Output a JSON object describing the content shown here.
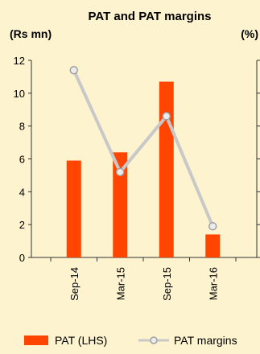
{
  "chart_data": {
    "type": "bar",
    "title": "PAT and PAT margins",
    "ylabel_left": "(Rs mn)",
    "ylabel_right": "(%)",
    "categories": [
      "Sep-14",
      "Mar-15",
      "Sep-15",
      "Mar-16"
    ],
    "ylim": [
      0,
      12
    ],
    "yticks": [
      0,
      2,
      4,
      6,
      8,
      10,
      12
    ],
    "grid": false,
    "legend_position": "bottom",
    "series": [
      {
        "name": "PAT (LHS)",
        "type": "bar",
        "axis": "left",
        "color": "#ff4500",
        "values": [
          5.9,
          6.4,
          10.7,
          1.4
        ]
      },
      {
        "name": "PAT margins",
        "type": "line",
        "axis": "right",
        "color": "#c8c8c8",
        "marker_color": "#a0a0a0",
        "values": [
          11.4,
          5.2,
          8.6,
          1.9
        ]
      }
    ]
  }
}
